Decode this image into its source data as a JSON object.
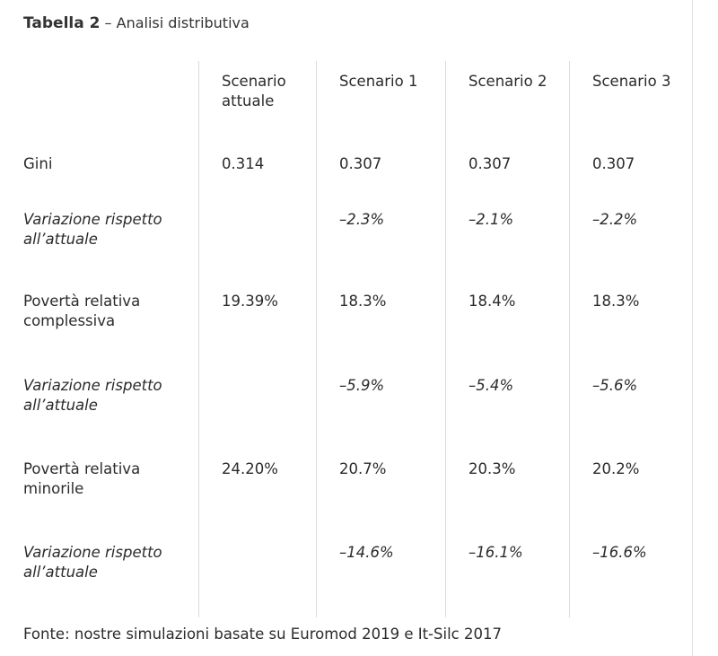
{
  "title": {
    "label": "Tabella 2",
    "separator": " – ",
    "subtitle": "Analisi distributiva"
  },
  "table": {
    "columns": [
      "Scenario attuale",
      "Scenario 1",
      "Scenario 2",
      "Scenario 3"
    ],
    "rows": [
      {
        "label": "Gini",
        "italic": false,
        "values": [
          "0.314",
          "0.307",
          "0.307",
          "0.307"
        ]
      },
      {
        "label": "Variazione rispetto all’attuale",
        "italic": true,
        "values": [
          "",
          "–2.3%",
          "–2.1%",
          "–2.2%"
        ]
      },
      {
        "label": "Povertà relativa complessiva",
        "italic": false,
        "values": [
          "19.39%",
          "18.3%",
          "18.4%",
          "18.3%"
        ]
      },
      {
        "label": "Variazione rispetto all’attuale",
        "italic": true,
        "values": [
          "",
          "–5.9%",
          "–5.4%",
          "–5.6%"
        ]
      },
      {
        "label": "Povertà relativa minorile",
        "italic": false,
        "values": [
          "24.20%",
          "20.7%",
          "20.3%",
          "20.2%"
        ]
      },
      {
        "label": "Variazione rispetto all’attuale",
        "italic": true,
        "values": [
          "",
          "–14.6%",
          "–16.1%",
          "–16.6%"
        ]
      }
    ]
  },
  "source": "Fonte: nostre simulazioni basate su Euromod 2019 e It-Silc 2017"
}
